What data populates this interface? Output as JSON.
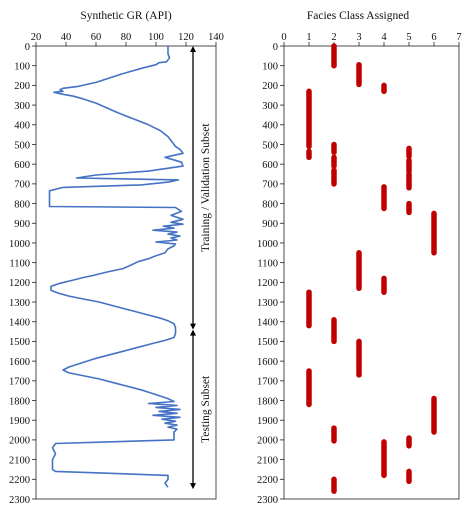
{
  "chart_data": [
    {
      "type": "line",
      "title": "Synthetic GR (API)",
      "xlabel": "",
      "ylabel": "",
      "x_ticks": [
        "20",
        "40",
        "60",
        "80",
        "100",
        "120",
        "140"
      ],
      "xlim": [
        20,
        140
      ],
      "y_ticks": [
        "0",
        "100",
        "200",
        "300",
        "400",
        "500",
        "600",
        "700",
        "800",
        "900",
        "1000",
        "1100",
        "1200",
        "1300",
        "1400",
        "1500",
        "1600",
        "1700",
        "1800",
        "1900",
        "2000",
        "2100",
        "2200",
        "2300"
      ],
      "ylim": [
        0,
        2300
      ],
      "y_inverted": true,
      "color": "#4472C4",
      "series": [
        {
          "points": [
            [
              108,
              0
            ],
            [
              108,
              40
            ],
            [
              109,
              60
            ],
            [
              107,
              80
            ],
            [
              102,
              85
            ],
            [
              100,
              95
            ],
            [
              92,
              110
            ],
            [
              85,
              125
            ],
            [
              78,
              140
            ],
            [
              70,
              160
            ],
            [
              60,
              185
            ],
            [
              48,
              205
            ],
            [
              38,
              215
            ],
            [
              36,
              222
            ],
            [
              38,
              230
            ],
            [
              32,
              235
            ],
            [
              38,
              245
            ],
            [
              45,
              255
            ],
            [
              52,
              270
            ],
            [
              60,
              290
            ],
            [
              66,
              310
            ],
            [
              75,
              340
            ],
            [
              85,
              370
            ],
            [
              95,
              400
            ],
            [
              103,
              430
            ],
            [
              108,
              460
            ],
            [
              111,
              490
            ],
            [
              113,
              510
            ],
            [
              116,
              525
            ],
            [
              118,
              545
            ],
            [
              106,
              565
            ],
            [
              117,
              590
            ],
            [
              118,
              610
            ],
            [
              95,
              635
            ],
            [
              60,
              655
            ],
            [
              47,
              670
            ],
            [
              115,
              680
            ],
            [
              109,
              690
            ],
            [
              90,
              705
            ],
            [
              38,
              718
            ],
            [
              29,
              735
            ],
            [
              29,
              760
            ],
            [
              29,
              800
            ],
            [
              29,
              815
            ],
            [
              113,
              820
            ],
            [
              117,
              840
            ],
            [
              110,
              860
            ],
            [
              118,
              880
            ],
            [
              110,
              895
            ],
            [
              118,
              905
            ],
            [
              105,
              915
            ],
            [
              112,
              925
            ],
            [
              98,
              935
            ],
            [
              114,
              945
            ],
            [
              108,
              955
            ],
            [
              116,
              965
            ],
            [
              110,
              975
            ],
            [
              114,
              985
            ],
            [
              100,
              995
            ],
            [
              113,
              1005
            ],
            [
              112,
              1015
            ],
            [
              108,
              1030
            ],
            [
              106,
              1050
            ],
            [
              100,
              1065
            ],
            [
              95,
              1080
            ],
            [
              88,
              1095
            ],
            [
              84,
              1110
            ],
            [
              78,
              1130
            ],
            [
              72,
              1140
            ],
            [
              66,
              1150
            ],
            [
              58,
              1165
            ],
            [
              52,
              1175
            ],
            [
              44,
              1190
            ],
            [
              36,
              1205
            ],
            [
              30,
              1220
            ],
            [
              30,
              1240
            ],
            [
              35,
              1255
            ],
            [
              42,
              1270
            ],
            [
              52,
              1285
            ],
            [
              62,
              1300
            ],
            [
              72,
              1320
            ],
            [
              82,
              1340
            ],
            [
              92,
              1360
            ],
            [
              102,
              1380
            ],
            [
              108,
              1395
            ],
            [
              112,
              1410
            ],
            [
              113,
              1430
            ],
            [
              113,
              1460
            ],
            [
              112,
              1480
            ],
            [
              106,
              1495
            ],
            [
              98,
              1510
            ],
            [
              88,
              1530
            ],
            [
              78,
              1550
            ],
            [
              68,
              1570
            ],
            [
              58,
              1590
            ],
            [
              50,
              1610
            ],
            [
              42,
              1630
            ],
            [
              38,
              1645
            ],
            [
              42,
              1660
            ],
            [
              52,
              1675
            ],
            [
              62,
              1690
            ],
            [
              72,
              1710
            ],
            [
              82,
              1730
            ],
            [
              92,
              1750
            ],
            [
              100,
              1770
            ],
            [
              108,
              1790
            ],
            [
              112,
              1805
            ],
            [
              95,
              1815
            ],
            [
              114,
              1825
            ],
            [
              100,
              1835
            ],
            [
              116,
              1845
            ],
            [
              102,
              1855
            ],
            [
              114,
              1865
            ],
            [
              98,
              1875
            ],
            [
              116,
              1885
            ],
            [
              104,
              1895
            ],
            [
              113,
              1905
            ],
            [
              106,
              1915
            ],
            [
              114,
              1925
            ],
            [
              108,
              1935
            ],
            [
              114,
              1945
            ],
            [
              112,
              1960
            ],
            [
              112,
              2000
            ],
            [
              33,
              2018
            ],
            [
              31,
              2040
            ],
            [
              33,
              2070
            ],
            [
              31,
              2100
            ],
            [
              31,
              2150
            ],
            [
              33,
              2160
            ],
            [
              108,
              2180
            ],
            [
              108,
              2200
            ],
            [
              106,
              2220
            ],
            [
              108,
              2240
            ]
          ]
        }
      ],
      "annotations": [
        {
          "text": "Training / Validation Subset",
          "span": [
            0,
            1440
          ]
        },
        {
          "text": "Testing Subset",
          "span": [
            1440,
            2250
          ]
        }
      ]
    },
    {
      "type": "scatter",
      "title": "Facies Class Assigned",
      "xlabel": "",
      "ylabel": "",
      "x_ticks": [
        "0",
        "1",
        "2",
        "3",
        "4",
        "5",
        "6",
        "7"
      ],
      "xlim": [
        0,
        7
      ],
      "y_ticks": [
        "0",
        "100",
        "200",
        "300",
        "400",
        "500",
        "600",
        "700",
        "800",
        "900",
        "1000",
        "1100",
        "1200",
        "1300",
        "1400",
        "1500",
        "1600",
        "1700",
        "1800",
        "1900",
        "2000",
        "2100",
        "2200",
        "2300"
      ],
      "ylim": [
        0,
        2300
      ],
      "y_inverted": true,
      "color": "#C00000",
      "segments": [
        {
          "facies": 2,
          "from": 0,
          "to": 100
        },
        {
          "facies": 3,
          "from": 95,
          "to": 195
        },
        {
          "facies": 4,
          "from": 200,
          "to": 230
        },
        {
          "facies": 1,
          "from": 230,
          "to": 510
        },
        {
          "facies": 1,
          "from": 535,
          "to": 565
        },
        {
          "facies": 2,
          "from": 500,
          "to": 540
        },
        {
          "facies": 2,
          "from": 565,
          "to": 610
        },
        {
          "facies": 2,
          "from": 630,
          "to": 700
        },
        {
          "facies": 5,
          "from": 520,
          "to": 560
        },
        {
          "facies": 5,
          "from": 580,
          "to": 635
        },
        {
          "facies": 5,
          "from": 650,
          "to": 720
        },
        {
          "facies": 4,
          "from": 715,
          "to": 825
        },
        {
          "facies": 5,
          "from": 800,
          "to": 845
        },
        {
          "facies": 6,
          "from": 850,
          "to": 1050
        },
        {
          "facies": 3,
          "from": 1050,
          "to": 1230
        },
        {
          "facies": 4,
          "from": 1180,
          "to": 1250
        },
        {
          "facies": 1,
          "from": 1250,
          "to": 1420
        },
        {
          "facies": 2,
          "from": 1390,
          "to": 1500
        },
        {
          "facies": 3,
          "from": 1500,
          "to": 1670
        },
        {
          "facies": 1,
          "from": 1650,
          "to": 1820
        },
        {
          "facies": 6,
          "from": 1790,
          "to": 1960
        },
        {
          "facies": 2,
          "from": 1940,
          "to": 2005
        },
        {
          "facies": 5,
          "from": 1990,
          "to": 2030
        },
        {
          "facies": 4,
          "from": 2010,
          "to": 2180
        },
        {
          "facies": 5,
          "from": 2160,
          "to": 2210
        },
        {
          "facies": 2,
          "from": 2200,
          "to": 2260
        }
      ]
    }
  ]
}
